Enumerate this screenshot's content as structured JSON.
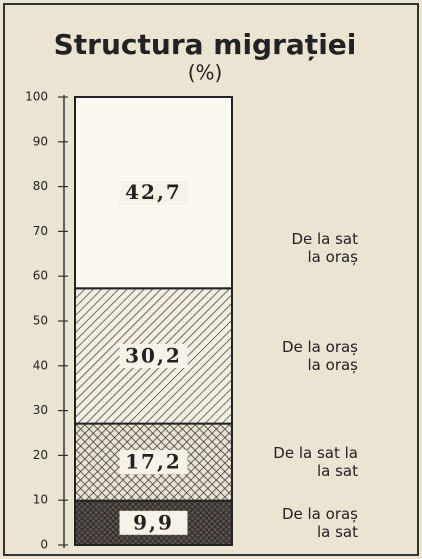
{
  "chart_data": {
    "type": "stacked-bar",
    "title": "Structura migrației",
    "subtitle": "(%)",
    "series": [
      {
        "name": "De la oraș\nla sat",
        "color": "#2e2a26",
        "pattern": "dense-crosshatch",
        "values": [
          9.9
        ],
        "value_labels": [
          "9,9"
        ]
      },
      {
        "name": "De la sat la\nla sat",
        "color": "#3a3530",
        "pattern": "crosshatch",
        "values": [
          17.2
        ],
        "value_labels": [
          "17,2"
        ]
      },
      {
        "name": "De la oraș\nla oraș",
        "color": "#3a3530",
        "pattern": "diagonal",
        "values": [
          30.2
        ],
        "value_labels": [
          "30,2"
        ]
      },
      {
        "name": "De la sat\nla oraș",
        "color": "#fbf8f0",
        "pattern": "none",
        "values": [
          42.7
        ],
        "value_labels": [
          "42,7"
        ]
      }
    ],
    "ylim": [
      0,
      100
    ],
    "yticks": [
      0,
      10,
      20,
      30,
      40,
      50,
      60,
      70,
      80,
      90,
      100
    ]
  }
}
